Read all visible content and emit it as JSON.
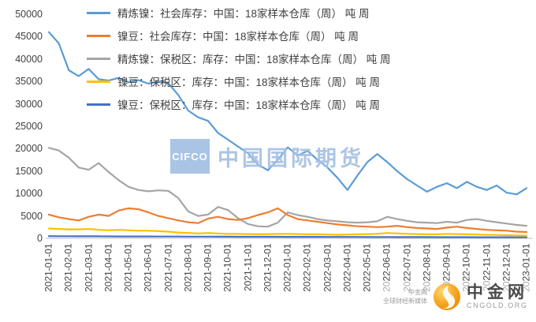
{
  "chart_data": {
    "type": "line",
    "title": "",
    "ylim": [
      0,
      50000
    ],
    "y_ticks": [
      "0",
      "5000",
      "10000",
      "15000",
      "20000",
      "25000",
      "30000",
      "35000",
      "40000",
      "45000",
      "50000"
    ],
    "x_labels": [
      "2021-01-01",
      "2021-02-01",
      "2021-03-01",
      "2021-04-01",
      "2021-05-01",
      "2021-06-01",
      "2021-07-01",
      "2021-08-01",
      "2021-09-01",
      "2021-10-01",
      "2021-11-01",
      "2021-12-01",
      "2022-01-01",
      "2022-02-01",
      "2022-03-01",
      "2022-04-01",
      "2022-05-01",
      "2022-06-01",
      "2022-07-01",
      "2022-08-01",
      "2022-09-01",
      "2022-10-01",
      "2022-11-01",
      "2022-12-01",
      "2023-01-01"
    ],
    "points_per_label": 2,
    "legend_position": "top-left-inside",
    "grid": false,
    "series": [
      {
        "id": "refined-nickel-social",
        "name": "精炼镍：社会库存：中国：18家样本仓库（周） 吨 周",
        "color": "#5B9BD5",
        "values": [
          46000,
          43500,
          37500,
          36200,
          37800,
          35500,
          35200,
          35800,
          34800,
          35300,
          34500,
          35000,
          34600,
          32000,
          28500,
          27000,
          26200,
          23500,
          22000,
          20500,
          19000,
          16500,
          15200,
          17500,
          20300,
          18500,
          19500,
          17500,
          15800,
          13500,
          10800,
          14000,
          17000,
          18800,
          17000,
          15000,
          13200,
          11800,
          10400,
          11500,
          12300,
          11200,
          12600,
          11500,
          10800,
          11800,
          10200,
          9800,
          11200
        ]
      },
      {
        "id": "nickel-briquette-social",
        "name": "镍豆：社会库存：中国：18家样本仓库（周） 吨 周",
        "color": "#ED7D31",
        "values": [
          5300,
          4700,
          4300,
          4000,
          4800,
          5300,
          5000,
          6200,
          6700,
          6500,
          5800,
          5000,
          4500,
          4000,
          3600,
          3400,
          4400,
          4800,
          4300,
          4100,
          4500,
          5200,
          5800,
          6700,
          5200,
          4300,
          4000,
          3700,
          3400,
          3100,
          2900,
          2700,
          2600,
          2500,
          2600,
          2800,
          2500,
          2300,
          2200,
          2100,
          2400,
          2600,
          2300,
          2100,
          1900,
          1800,
          1700,
          1500,
          1400
        ]
      },
      {
        "id": "refined-nickel-bonded",
        "name": "精炼镍：保税区：库存：中国：18家样本仓库（周） 吨 周",
        "color": "#A5A5A5",
        "values": [
          20200,
          19600,
          18000,
          15800,
          15300,
          16800,
          14800,
          13000,
          11500,
          10800,
          10500,
          10700,
          10600,
          9000,
          6000,
          5000,
          5300,
          7000,
          6300,
          4500,
          3200,
          2700,
          2600,
          3500,
          5800,
          5200,
          4800,
          4300,
          4000,
          3800,
          3600,
          3500,
          3600,
          3800,
          4800,
          4300,
          3900,
          3600,
          3500,
          3400,
          3700,
          3500,
          4100,
          4300,
          3900,
          3600,
          3300,
          3000,
          2800
        ]
      },
      {
        "id": "nickel-briquette-bonded-a",
        "name": "镍豆：保税区：库存：中国：18家样本仓库（周） 吨 周",
        "color": "#FFC000",
        "values": [
          2200,
          2100,
          2000,
          2000,
          2100,
          1900,
          1800,
          1900,
          1800,
          1700,
          1700,
          1600,
          1500,
          1300,
          1200,
          1100,
          1200,
          1100,
          1000,
          1000,
          950,
          900,
          950,
          1000,
          1000,
          950,
          900,
          900,
          850,
          800,
          850,
          900,
          950,
          1000,
          1200,
          1100,
          1000,
          950,
          900,
          900,
          1000,
          950,
          900,
          850,
          800,
          750,
          700,
          650,
          600
        ]
      },
      {
        "id": "nickel-briquette-bonded-b",
        "name": "镍豆：保税区：库存：中国：18家样本仓库（周） 吨 周",
        "color": "#4472C4",
        "values": [
          500,
          480,
          470,
          460,
          450,
          450,
          440,
          430,
          430,
          420,
          420,
          410,
          400,
          400,
          390,
          380,
          380,
          370,
          370,
          360,
          360,
          350,
          350,
          350,
          340,
          340,
          330,
          330,
          320,
          320,
          310,
          310,
          300,
          300,
          300,
          290,
          290,
          280,
          280,
          270,
          270,
          260,
          260,
          250,
          250,
          240,
          240,
          230,
          230
        ]
      }
    ]
  },
  "watermark": {
    "badge": "CIFCO",
    "text": "中国国际期货"
  },
  "logo": {
    "name": "中金网",
    "domain": "CNGOLD.ORG",
    "tagline_1": "中金网",
    "tagline_2": "全球财经新媒体"
  }
}
